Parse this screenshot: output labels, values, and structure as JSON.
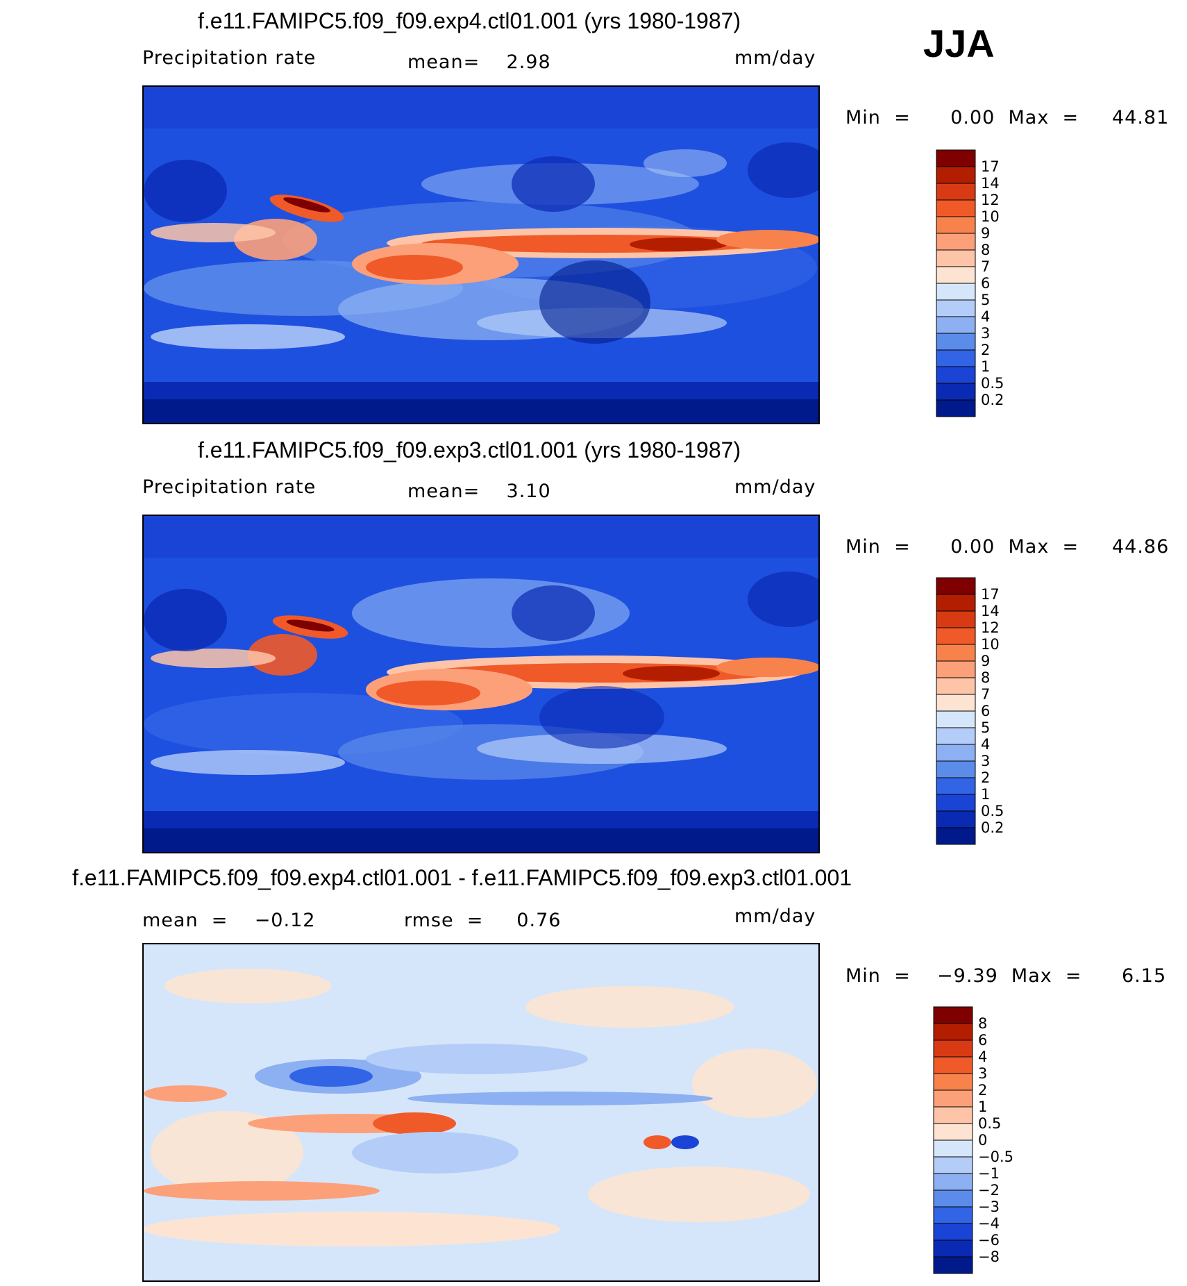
{
  "season": "JJA",
  "panels": [
    {
      "title": "f.e11.FAMIPC5.f09_f09.exp4.ctl01.001 (yrs 1980-1987)",
      "variable": "Precipitation rate",
      "mean_text": "mean=    2.98",
      "units": "mm/day",
      "minmax": "Min  =      0.00  Max  =     44.81",
      "colorbar_levels": [
        "17",
        "14",
        "12",
        "10",
        "9",
        "8",
        "7",
        "6",
        "5",
        "4",
        "3",
        "2",
        "1",
        "0.5",
        "0.2"
      ]
    },
    {
      "title": "f.e11.FAMIPC5.f09_f09.exp3.ctl01.001 (yrs 1980-1987)",
      "variable": "Precipitation rate",
      "mean_text": "mean=    3.10",
      "units": "mm/day",
      "minmax": "Min  =      0.00  Max  =     44.86",
      "colorbar_levels": [
        "17",
        "14",
        "12",
        "10",
        "9",
        "8",
        "7",
        "6",
        "5",
        "4",
        "3",
        "2",
        "1",
        "0.5",
        "0.2"
      ]
    },
    {
      "title": "f.e11.FAMIPC5.f09_f09.exp4.ctl01.001 - f.e11.FAMIPC5.f09_f09.exp3.ctl01.001",
      "mean_text": "mean  =    −0.12",
      "rmse_text": "rmse  =     0.76",
      "units": "mm/day",
      "minmax": "Min  =    −9.39  Max  =      6.15",
      "colorbar_levels": [
        "8",
        "6",
        "4",
        "3",
        "2",
        "1",
        "0.5",
        "0",
        "−0.5",
        "−1",
        "−2",
        "−3",
        "−4",
        "−6",
        "−8"
      ]
    }
  ],
  "colors": {
    "precip_scale": [
      "#7f0000",
      "#b41e00",
      "#d83a14",
      "#f05a28",
      "#f8824c",
      "#fca07a",
      "#fdc4a8",
      "#fde4d2",
      "#d6e6fa",
      "#b4cdf8",
      "#8cb0f2",
      "#5c8cea",
      "#3264e6",
      "#1a44d6",
      "#0a2ab4",
      "#001a8c"
    ],
    "diff_scale": [
      "#7f0000",
      "#b41e00",
      "#d83a14",
      "#f05a28",
      "#f8824c",
      "#fca07a",
      "#fdc4a8",
      "#fde4d2",
      "#d6e6fa",
      "#b4cdf8",
      "#8cb0f2",
      "#5c8cea",
      "#3264e6",
      "#1a44d6",
      "#0a2ab4",
      "#001a8c"
    ]
  }
}
